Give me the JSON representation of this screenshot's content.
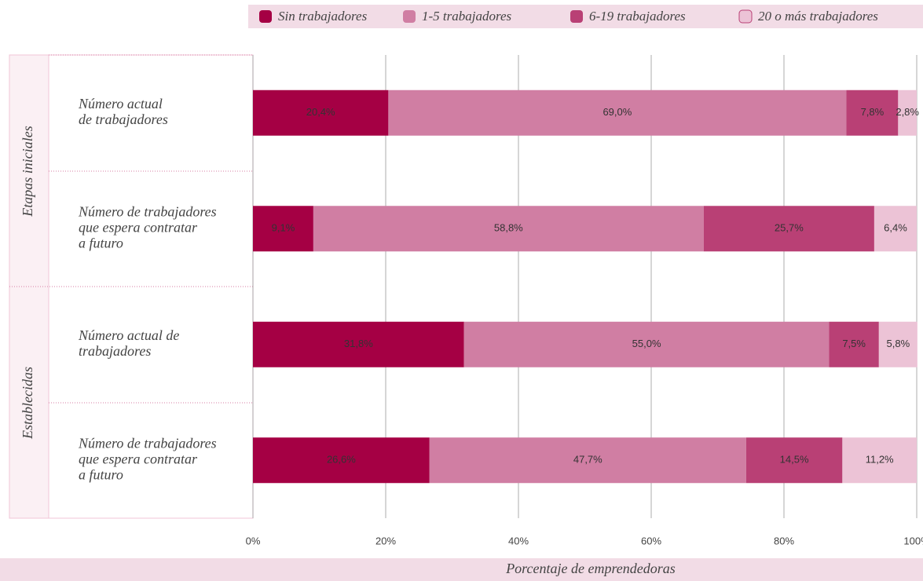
{
  "chart_data": {
    "type": "stacked_bar_horizontal",
    "x_label": "Porcentaje de emprendedoras",
    "groups": [
      "Etapas iniciales",
      "Establecidas"
    ],
    "categories": [
      "Número actual\nde trabajadores",
      "Número de trabajadores\nque espera contratar\na futuro",
      "Número actual de\ntrabajadores",
      "Número de trabajadores\nque espera contratar\na futuro"
    ],
    "series": [
      {
        "name": "Sin trabajadores",
        "color": "#a50044",
        "values": [
          20.4,
          9.1,
          31.8,
          26.6
        ],
        "value_labels": [
          "20,4%",
          "9,1%",
          "31,8%",
          "26,6%"
        ]
      },
      {
        "name": "1-5 trabajadores",
        "color": "#d07ea3",
        "values": [
          69.0,
          58.8,
          55.0,
          47.7
        ],
        "value_labels": [
          "69,0%",
          "58,8%",
          "55,0%",
          "47,7%"
        ]
      },
      {
        "name": "6-19 trabajadores",
        "color": "#b94075",
        "values": [
          7.8,
          25.7,
          7.5,
          14.5
        ],
        "value_labels": [
          "7,8%",
          "25,7%",
          "7,5%",
          "14,5%"
        ]
      },
      {
        "name": "20 o más trabajadores",
        "color": "#ecc3d6",
        "values": [
          2.8,
          6.4,
          5.8,
          11.2
        ],
        "value_labels": [
          "2,8%",
          "6,4%",
          "5,8%",
          "11,2%"
        ]
      }
    ],
    "xlim": [
      0,
      100
    ],
    "xticks": [
      {
        "value": 0,
        "label": "0%"
      },
      {
        "value": 20,
        "label": "20%"
      },
      {
        "value": 40,
        "label": "40%"
      },
      {
        "value": 60,
        "label": "60%"
      },
      {
        "value": 80,
        "label": "80%"
      },
      {
        "value": 100,
        "label": "100%"
      }
    ],
    "grid": true
  }
}
